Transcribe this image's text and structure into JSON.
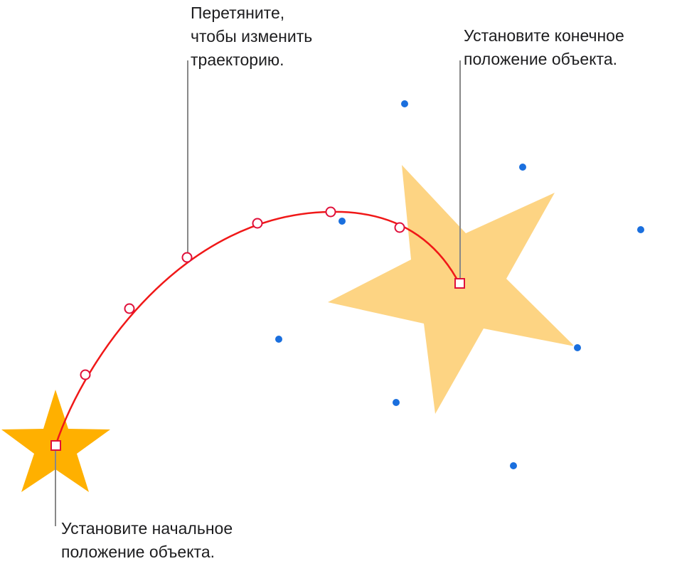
{
  "callouts": [
    {
      "lines": [
        "Перетяните,",
        "чтобы изменить",
        "траекторию."
      ]
    },
    {
      "lines": [
        "Установите конечное",
        "положение объекта."
      ]
    },
    {
      "lines": [
        "Установите начальное",
        "положение объекта."
      ]
    }
  ]
}
